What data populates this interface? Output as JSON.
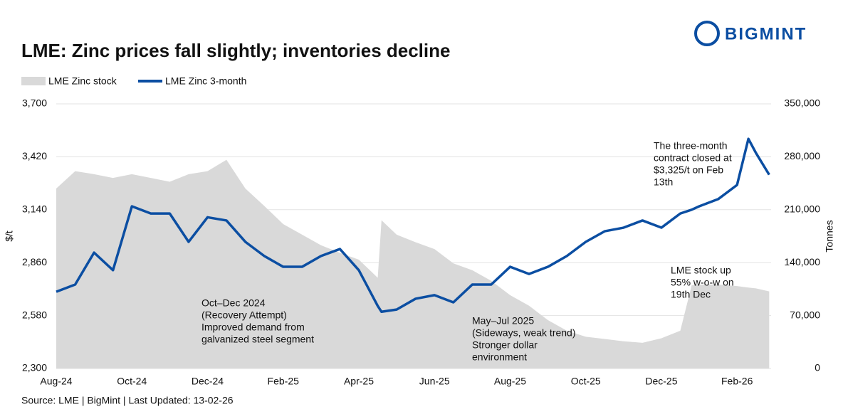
{
  "chart_data": {
    "type": "line",
    "title": "LME: Zinc prices fall slightly; inventories decline",
    "brand": "BIGMINT",
    "source": "Source: LME | BigMint | Last Updated: 13-02-26",
    "y_label": "$/t",
    "y2_label": "Tonnes",
    "x": [
      0,
      0.5,
      1,
      1.5,
      2,
      2.5,
      3,
      3.5,
      4,
      4.5,
      5,
      5.5,
      6,
      6.5,
      7,
      7.5,
      8,
      8.5,
      8.6,
      9,
      9.5,
      10,
      10.5,
      11,
      11.5,
      12,
      12.5,
      13,
      13.5,
      14,
      14.5,
      15,
      15.5,
      16,
      16.5,
      16.8,
      17,
      17.5,
      18,
      18.3,
      18.5,
      18.85
    ],
    "xlim": [
      0,
      18.9
    ],
    "xticks": [
      {
        "value": 0,
        "label": "Aug-24"
      },
      {
        "value": 2,
        "label": "Oct-24"
      },
      {
        "value": 4,
        "label": "Dec-24"
      },
      {
        "value": 6,
        "label": "Feb-25"
      },
      {
        "value": 8,
        "label": "Apr-25"
      },
      {
        "value": 10,
        "label": "Jun-25"
      },
      {
        "value": 12,
        "label": "Aug-25"
      },
      {
        "value": 14,
        "label": "Oct-25"
      },
      {
        "value": 16,
        "label": "Dec-25"
      },
      {
        "value": 18,
        "label": "Feb-26"
      }
    ],
    "ylim": [
      2300,
      3700
    ],
    "yticks": [
      {
        "value": 2300,
        "label": "2,300"
      },
      {
        "value": 2580,
        "label": "2,580"
      },
      {
        "value": 2860,
        "label": "2,860"
      },
      {
        "value": 3140,
        "label": "3,140"
      },
      {
        "value": 3420,
        "label": "3,420"
      },
      {
        "value": 3700,
        "label": "3,700"
      }
    ],
    "y2lim": [
      0,
      350000
    ],
    "y2ticks": [
      0,
      {
        "value": 70000,
        "label": "70,000"
      },
      {
        "value": 140000,
        "label": "140,000"
      },
      {
        "value": 210000,
        "label": "210,000"
      },
      {
        "value": 280000,
        "label": "280,000"
      },
      {
        "value": 350000,
        "label": "350,000"
      }
    ],
    "grid": true,
    "series": [
      {
        "name": "LME Zinc stock",
        "kind": "area",
        "axis": "y2",
        "color": "#d9d9d9",
        "values": [
          238000,
          261000,
          257000,
          252000,
          257000,
          252000,
          247000,
          257000,
          261000,
          276000,
          238000,
          215000,
          191000,
          177000,
          163000,
          153000,
          144000,
          120000,
          196000,
          177000,
          167000,
          158000,
          139000,
          130000,
          116000,
          97000,
          83000,
          64000,
          50000,
          42000,
          39000,
          36000,
          34000,
          40000,
          50000,
          110000,
          111000,
          111000,
          109000,
          107000,
          106000,
          102000
        ]
      },
      {
        "name": "LME Zinc 3-month",
        "kind": "line",
        "axis": "y",
        "color": "#0b4ea2",
        "values": [
          2706,
          2744,
          2913,
          2820,
          3158,
          3120,
          3120,
          2970,
          3100,
          3083,
          2970,
          2895,
          2838,
          2838,
          2895,
          2932,
          2820,
          2631,
          2600,
          2612,
          2669,
          2688,
          2650,
          2744,
          2744,
          2838,
          2800,
          2838,
          2895,
          2970,
          3026,
          3045,
          3083,
          3045,
          3120,
          3140,
          3158,
          3196,
          3271,
          3515,
          3440,
          3325
        ]
      }
    ],
    "annotations": [
      [
        "Oct–Dec 2024",
        "(Recovery Attempt)",
        "Improved demand from",
        "galvanized steel segment"
      ],
      [
        "May–Jul 2025",
        "(Sideways, weak trend)",
        "Stronger dollar",
        "environment"
      ],
      [
        "The three-month",
        "contract closed at",
        "$3,325/t on Feb",
        "13th"
      ],
      [
        "LME stock up",
        "55% w-o-w on",
        "19th Dec"
      ]
    ]
  }
}
